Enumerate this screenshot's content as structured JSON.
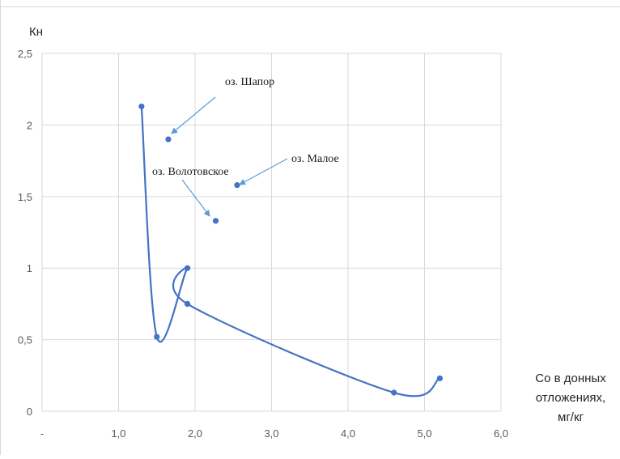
{
  "chart_data": {
    "type": "scatter",
    "ylabel": "Кн",
    "xlabel_lines": [
      "Co в донных",
      "отложениях,",
      "мг/кг"
    ],
    "xlim": [
      0,
      6
    ],
    "ylim": [
      0,
      2.5
    ],
    "x_ticks": [
      {
        "v": 0,
        "label": "-"
      },
      {
        "v": 1,
        "label": "1,0"
      },
      {
        "v": 2,
        "label": "2,0"
      },
      {
        "v": 3,
        "label": "3,0"
      },
      {
        "v": 4,
        "label": "4,0"
      },
      {
        "v": 5,
        "label": "5,0"
      },
      {
        "v": 6,
        "label": "6,0"
      }
    ],
    "y_ticks": [
      {
        "v": 0,
        "label": "0"
      },
      {
        "v": 0.5,
        "label": "0,5"
      },
      {
        "v": 1,
        "label": "1"
      },
      {
        "v": 1.5,
        "label": "1,5"
      },
      {
        "v": 2,
        "label": "2"
      },
      {
        "v": 2.5,
        "label": "2,5"
      }
    ],
    "grid": true,
    "series": [
      {
        "smooth": true,
        "color": "#4472c4",
        "points": [
          {
            "x": 1.3,
            "y": 2.13
          },
          {
            "x": 1.5,
            "y": 0.52
          },
          {
            "x": 1.9,
            "y": 1.0
          },
          {
            "x": 1.9,
            "y": 0.75
          },
          {
            "x": 4.6,
            "y": 0.13
          },
          {
            "x": 5.2,
            "y": 0.23
          }
        ]
      }
    ],
    "outliers": [
      {
        "x": 1.65,
        "y": 1.9
      },
      {
        "x": 2.55,
        "y": 1.58
      },
      {
        "x": 2.27,
        "y": 1.33
      }
    ],
    "annotations": [
      {
        "text": "оз. Шапор",
        "x": 1.65,
        "y": 1.9
      },
      {
        "text": "оз. Малое",
        "x": 2.55,
        "y": 1.58
      },
      {
        "text": "оз. Волотовское",
        "x": 2.27,
        "y": 1.33
      }
    ]
  }
}
